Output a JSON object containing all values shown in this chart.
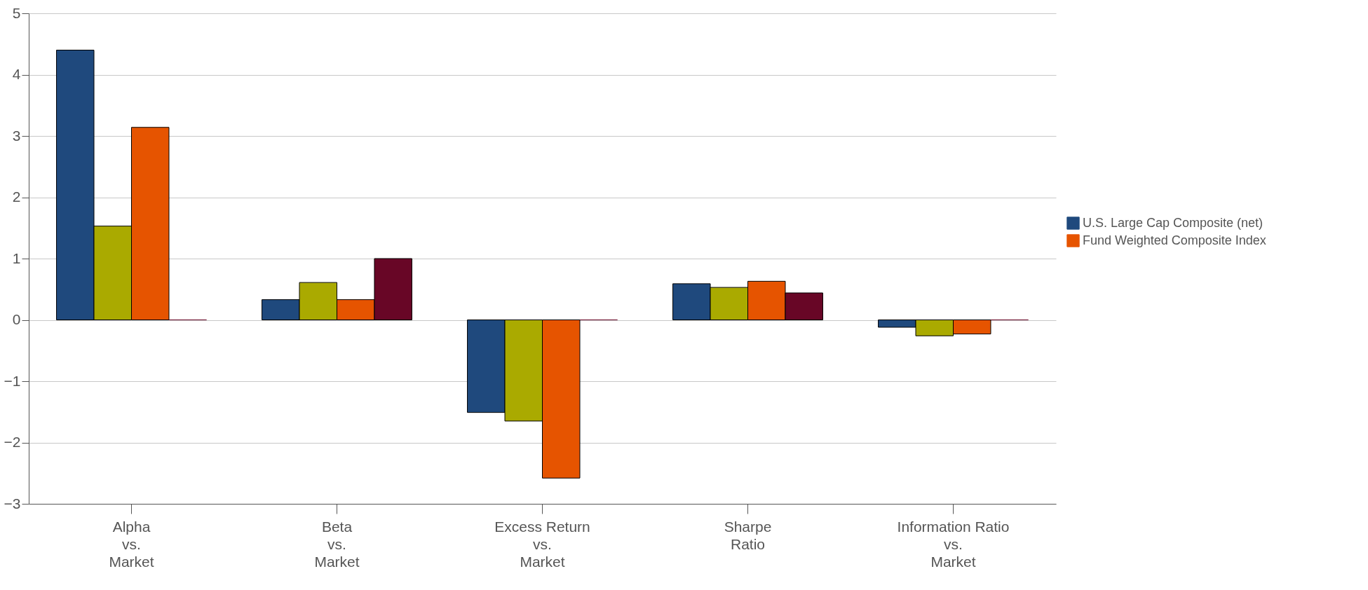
{
  "chart_data": {
    "type": "bar",
    "categories": [
      "Alpha\nvs.\nMarket",
      "Beta\nvs.\nMarket",
      "Excess Return\nvs.\nMarket",
      "Sharpe\nRatio",
      "Information Ratio\nvs.\nMarket"
    ],
    "series": [
      {
        "name": "U.S. Large Cap Composite (net)",
        "color": "#1f497d",
        "values": [
          4.4,
          0.33,
          -1.51,
          0.59,
          -0.12
        ]
      },
      {
        "color": "#aaaa00",
        "values": [
          1.53,
          0.61,
          -1.65,
          0.53,
          -0.26
        ]
      },
      {
        "name": "Fund Weighted Composite Index",
        "color": "#e65400",
        "values": [
          3.14,
          0.33,
          -2.58,
          0.63,
          -0.23
        ]
      },
      {
        "color": "#680626",
        "values": [
          0,
          1.0,
          0,
          0.44,
          0
        ]
      }
    ],
    "ylim": [
      -3,
      5
    ],
    "yticks": [
      -3,
      -2,
      -1,
      0,
      1,
      2,
      3,
      4,
      5
    ],
    "grid": "y",
    "legend": "right"
  }
}
